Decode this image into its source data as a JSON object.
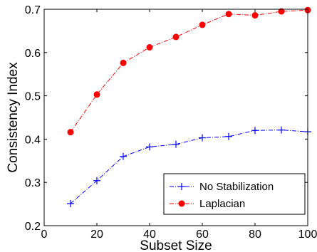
{
  "chart_data": {
    "type": "line",
    "title": "",
    "xlabel": "Subset Size",
    "ylabel": "Consistency Index",
    "xlim": [
      0,
      100
    ],
    "ylim": [
      0.2,
      0.7
    ],
    "xticks": [
      0,
      20,
      40,
      60,
      80,
      100
    ],
    "xtick_labels": [
      "0",
      "20",
      "40",
      "60",
      "80",
      "100"
    ],
    "yticks": [
      0.2,
      0.3,
      0.4,
      0.5,
      0.6,
      0.7
    ],
    "ytick_labels": [
      "0.2",
      "0.3",
      "0.4",
      "0.5",
      "0.6",
      "0.7"
    ],
    "grid": false,
    "legend_position": "bottom-right",
    "x": [
      10,
      20,
      30,
      40,
      50,
      60,
      70,
      80,
      90,
      100
    ],
    "series": [
      {
        "name": "No Stabilization",
        "color": "#0000ff",
        "marker": "plus",
        "line_style": "dash-dot",
        "values": [
          0.251,
          0.304,
          0.36,
          0.382,
          0.388,
          0.403,
          0.406,
          0.42,
          0.421,
          0.417
        ]
      },
      {
        "name": "Laplacian",
        "color": "#ff0000",
        "marker": "filled-circle",
        "line_style": "dash-dot",
        "values": [
          0.416,
          0.503,
          0.576,
          0.612,
          0.636,
          0.664,
          0.689,
          0.686,
          0.695,
          0.698
        ]
      }
    ]
  }
}
